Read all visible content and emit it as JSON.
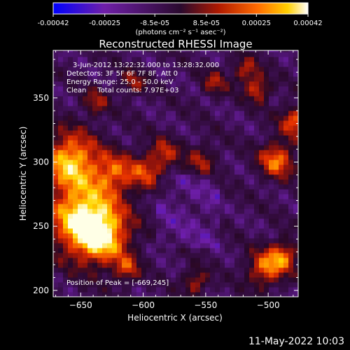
{
  "colorbar": {
    "ticks": [
      "-0.00042",
      "-0.00025",
      "-8.5e-05",
      "8.5e-05",
      "0.00025",
      "0.00042"
    ],
    "unit_label": "(photons cm⁻² s⁻¹ asec⁻²)",
    "range": [
      -0.00042,
      0.00042
    ],
    "colors": [
      "#0000ff",
      "#6f1fa8",
      "#2a0a2e",
      "#b01a00",
      "#ff6a00",
      "#ffd000",
      "#ffffff"
    ]
  },
  "chart_data": {
    "type": "heatmap",
    "title": "Reconstructed RHESSI Image",
    "xlabel": "Heliocentric X (arcsec)",
    "ylabel": "Heliocentric Y (arcsec)",
    "xlim": [
      -672,
      -476
    ],
    "ylim": [
      195,
      387
    ],
    "xticks": [
      -650,
      -600,
      -550,
      -500
    ],
    "yticks": [
      200,
      250,
      300,
      350
    ],
    "xtick_labels": [
      "−650",
      "−600",
      "−550",
      "−500"
    ],
    "ytick_labels": [
      "200",
      "250",
      "300",
      "350"
    ],
    "annotations": [
      "3-Jun-2012 13:22:32.000 to 13:28:32.000",
      "Detectors: 3F 5F 6F 7F 8F, Att 0",
      "Energy Range: 25.0 - 50.0 keV",
      "Clean     Total counts: 7.97E+03"
    ],
    "peak_label": "Position of Peak = [-669,245]",
    "peak_position": [
      -669,
      245
    ]
  },
  "footer": {
    "timestamp": "11-May-2022 10:03"
  }
}
